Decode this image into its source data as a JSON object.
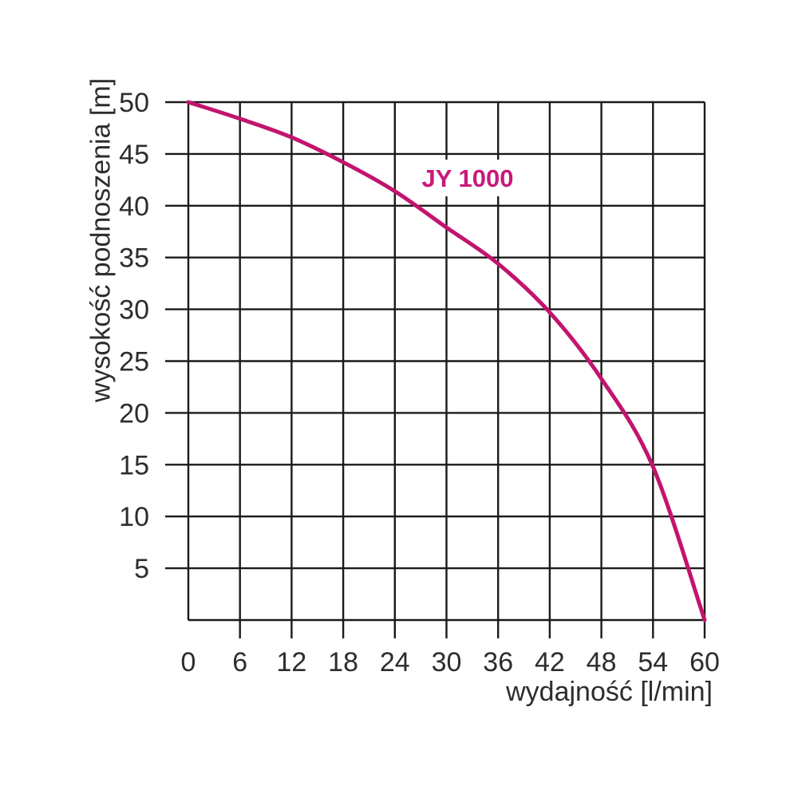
{
  "chart_data": {
    "type": "line",
    "title": "JY 1000",
    "xlabel": "wydajność [l/min]",
    "ylabel": "wysokość podnoszenia [m]",
    "xlim": [
      0,
      60
    ],
    "ylim": [
      0,
      50
    ],
    "x_ticks": [
      0,
      6,
      12,
      18,
      24,
      30,
      36,
      42,
      48,
      54,
      60
    ],
    "y_ticks": [
      5,
      10,
      15,
      20,
      25,
      30,
      35,
      40,
      45,
      50
    ],
    "grid": true,
    "legend_position": "inline-label-on-curve",
    "series": [
      {
        "name": "JY 1000",
        "x": [
          0,
          6,
          12,
          18,
          24,
          30,
          36,
          42,
          48,
          54,
          60
        ],
        "y": [
          50,
          48.4,
          46.6,
          44.2,
          41.4,
          37.9,
          34.4,
          29.7,
          23.3,
          14.8,
          0
        ]
      }
    ],
    "colors": {
      "curve": "#c2146e",
      "series_label": "#c8197a",
      "grid": "#1a1a1a",
      "text": "#2d2d2d",
      "background": "#ffffff"
    }
  }
}
